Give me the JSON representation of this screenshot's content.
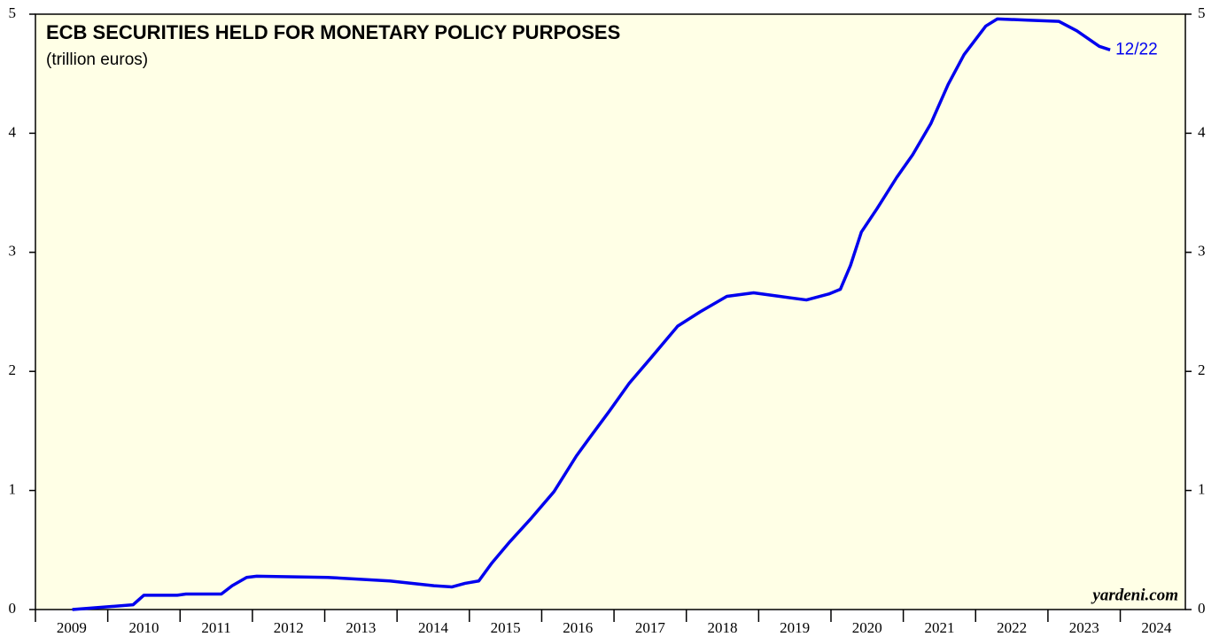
{
  "chart_data": {
    "type": "line",
    "title": "ECB SECURITIES HELD FOR MONETARY POLICY PURPOSES",
    "subtitle": "(trillion euros)",
    "source": "yardeni.com",
    "end_label": "12/22",
    "x": [
      2009.51,
      2010.35,
      2010.5,
      2010.96,
      2011.08,
      2011.57,
      2011.72,
      2011.92,
      2012.06,
      2013.04,
      2013.9,
      2014.51,
      2014.76,
      2014.94,
      2015.13,
      2015.31,
      2015.56,
      2015.86,
      2016.17,
      2016.48,
      2016.66,
      2016.94,
      2017.21,
      2017.52,
      2017.88,
      2018.19,
      2018.56,
      2018.93,
      2019.29,
      2019.66,
      2019.97,
      2020.13,
      2020.27,
      2020.42,
      2020.64,
      2020.91,
      2021.13,
      2021.38,
      2021.62,
      2021.84,
      2021.99,
      2022.14,
      2022.3,
      2022.72,
      2023.15,
      2023.4,
      2023.71,
      2023.86
    ],
    "series": [
      {
        "name": "ECB securities",
        "color": "#0000ee",
        "values": [
          0,
          0.04,
          0.12,
          0.12,
          0.13,
          0.13,
          0.2,
          0.27,
          0.28,
          0.27,
          0.24,
          0.2,
          0.19,
          0.22,
          0.24,
          0.39,
          0.57,
          0.77,
          0.99,
          1.29,
          1.44,
          1.67,
          1.9,
          2.12,
          2.38,
          2.5,
          2.63,
          2.66,
          2.63,
          2.6,
          2.65,
          2.69,
          2.89,
          3.17,
          3.37,
          3.63,
          3.82,
          4.08,
          4.41,
          4.66,
          4.78,
          4.9,
          4.96,
          4.95,
          4.94,
          4.86,
          4.73,
          4.7
        ]
      }
    ],
    "xlim": [
      2009,
      2024.9
    ],
    "xticks": [
      2009,
      2010,
      2011,
      2012,
      2013,
      2014,
      2015,
      2016,
      2017,
      2018,
      2019,
      2020,
      2021,
      2022,
      2023,
      2024
    ],
    "ylim": [
      0,
      5
    ],
    "yticks": [
      0,
      1,
      2,
      3,
      4,
      5
    ],
    "y2lim": [
      0,
      5
    ],
    "y2ticks": [
      0,
      1,
      2,
      3,
      4,
      5
    ],
    "background": "#ffffe6"
  }
}
